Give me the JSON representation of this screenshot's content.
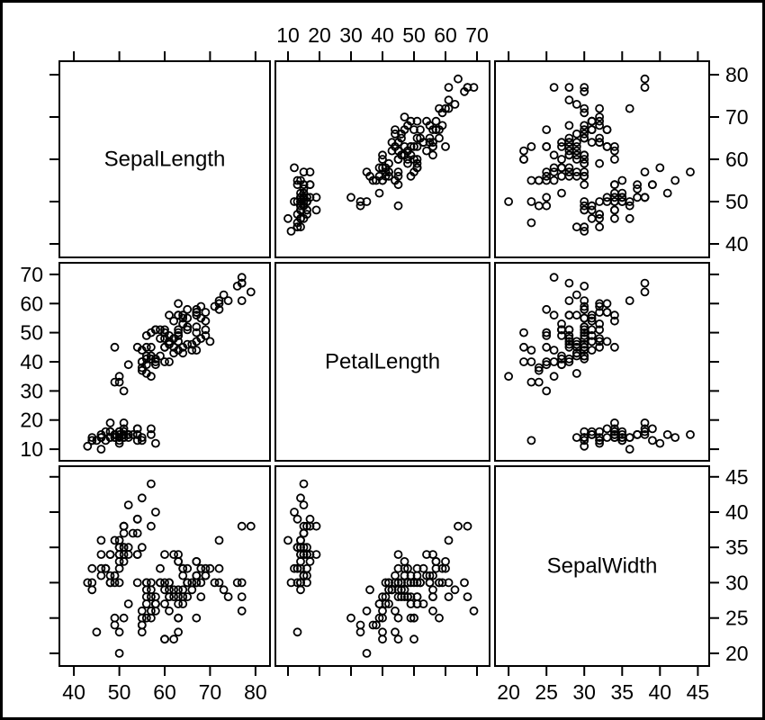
{
  "chart_data": {
    "type": "scatter",
    "subtype": "scatterplot-matrix",
    "title": "",
    "grid": "off",
    "legend": "none",
    "marker": {
      "shape": "open-circle",
      "radius_px": 4,
      "stroke_px": 1.8,
      "color": "#000000",
      "fill": "none"
    },
    "colors": {
      "background": "#ffffff",
      "frame": "#000000",
      "panel_border": "#000000",
      "text": "#000000"
    },
    "label_sides": {
      "cols": [
        "bottom",
        "top",
        "bottom"
      ],
      "rows": [
        "right",
        "left",
        "right"
      ]
    },
    "variables": [
      {
        "name": "SepalLength",
        "min": 36.8,
        "max": 83.2,
        "ticks": [
          40,
          50,
          60,
          70,
          80
        ]
      },
      {
        "name": "PetalLength",
        "min": 6,
        "max": 74,
        "ticks": [
          10,
          20,
          30,
          40,
          50,
          60,
          70
        ]
      },
      {
        "name": "SepalWidth",
        "min": 18.2,
        "max": 46.5,
        "ticks": [
          20,
          25,
          30,
          35,
          40,
          45
        ]
      }
    ],
    "points": {
      "SepalLength": [
        51,
        49,
        47,
        46,
        50,
        54,
        46,
        50,
        44,
        49,
        54,
        48,
        48,
        43,
        58,
        57,
        54,
        51,
        57,
        51,
        54,
        51,
        46,
        51,
        48,
        50,
        50,
        52,
        52,
        47,
        48,
        54,
        52,
        55,
        49,
        50,
        55,
        49,
        44,
        51,
        50,
        45,
        44,
        50,
        51,
        48,
        51,
        46,
        53,
        50,
        70,
        64,
        69,
        55,
        65,
        57,
        63,
        49,
        66,
        52,
        50,
        59,
        60,
        61,
        56,
        67,
        56,
        58,
        62,
        56,
        59,
        61,
        63,
        61,
        64,
        66,
        68,
        67,
        60,
        57,
        55,
        55,
        58,
        60,
        54,
        60,
        67,
        63,
        56,
        55,
        55,
        61,
        58,
        50,
        56,
        57,
        57,
        62,
        51,
        57,
        63,
        58,
        71,
        63,
        65,
        76,
        49,
        73,
        67,
        72,
        65,
        64,
        68,
        57,
        58,
        64,
        65,
        77,
        77,
        60,
        69,
        56,
        77,
        63,
        67,
        72,
        62,
        61,
        64,
        72,
        74,
        79,
        64,
        63,
        61,
        77,
        63,
        64,
        60,
        69,
        67,
        69,
        58,
        68,
        67,
        67,
        63,
        65,
        62,
        59
      ],
      "SepalWidth": [
        35,
        30,
        32,
        31,
        36,
        39,
        34,
        34,
        29,
        31,
        37,
        34,
        30,
        30,
        40,
        44,
        39,
        35,
        38,
        38,
        34,
        37,
        36,
        33,
        34,
        30,
        34,
        35,
        34,
        32,
        31,
        34,
        41,
        42,
        31,
        32,
        35,
        36,
        30,
        34,
        35,
        23,
        32,
        35,
        38,
        30,
        38,
        32,
        37,
        33,
        32,
        32,
        31,
        23,
        28,
        28,
        33,
        24,
        29,
        27,
        20,
        30,
        22,
        29,
        29,
        31,
        30,
        27,
        22,
        25,
        32,
        28,
        25,
        28,
        29,
        30,
        28,
        30,
        29,
        26,
        24,
        24,
        27,
        27,
        30,
        34,
        31,
        23,
        30,
        25,
        26,
        30,
        26,
        23,
        27,
        30,
        29,
        29,
        25,
        28,
        33,
        27,
        30,
        29,
        30,
        30,
        25,
        29,
        25,
        36,
        32,
        27,
        30,
        25,
        28,
        32,
        30,
        38,
        26,
        22,
        32,
        28,
        28,
        27,
        33,
        32,
        28,
        30,
        28,
        30,
        28,
        38,
        28,
        28,
        26,
        30,
        34,
        31,
        30,
        31,
        31,
        31,
        27,
        32,
        33,
        30,
        25,
        30,
        34,
        30
      ],
      "PetalLength": [
        14,
        14,
        13,
        15,
        14,
        17,
        14,
        15,
        14,
        15,
        15,
        16,
        14,
        11,
        12,
        15,
        13,
        14,
        17,
        15,
        17,
        15,
        10,
        17,
        19,
        16,
        16,
        15,
        14,
        16,
        16,
        15,
        15,
        14,
        15,
        12,
        13,
        14,
        13,
        15,
        13,
        13,
        13,
        16,
        19,
        14,
        16,
        14,
        15,
        14,
        47,
        45,
        49,
        40,
        46,
        45,
        47,
        33,
        46,
        39,
        35,
        42,
        40,
        47,
        36,
        44,
        45,
        41,
        45,
        39,
        48,
        40,
        49,
        47,
        43,
        44,
        48,
        50,
        45,
        35,
        38,
        37,
        39,
        51,
        45,
        45,
        47,
        44,
        41,
        40,
        44,
        46,
        40,
        33,
        42,
        42,
        42,
        43,
        30,
        41,
        60,
        51,
        59,
        56,
        58,
        66,
        45,
        63,
        58,
        61,
        51,
        53,
        55,
        50,
        51,
        53,
        55,
        67,
        69,
        50,
        57,
        49,
        67,
        49,
        57,
        60,
        48,
        49,
        56,
        58,
        61,
        64,
        56,
        51,
        56,
        61,
        56,
        55,
        48,
        54,
        56,
        51,
        51,
        59,
        57,
        52,
        50,
        52,
        54,
        51
      ]
    }
  }
}
